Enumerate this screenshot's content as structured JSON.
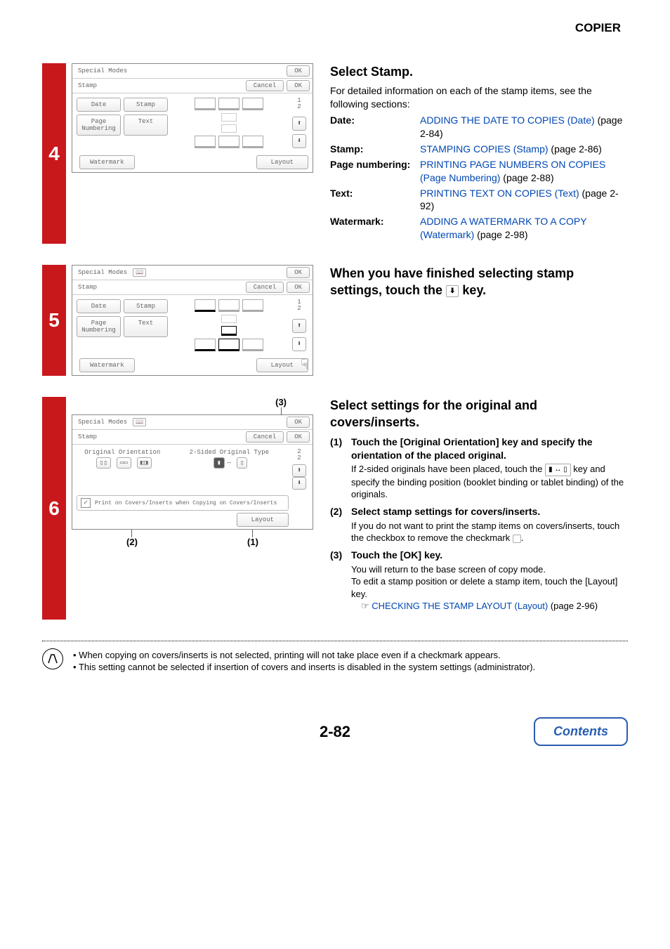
{
  "header": {
    "section": "COPIER"
  },
  "accent_color": "#c8181c",
  "link_color": "#0047b3",
  "steps": {
    "s4": {
      "num": "4",
      "title": "Select Stamp.",
      "intro": "For detailed information on each of the stamp items, see the following sections:",
      "defs": [
        {
          "term": "Date:",
          "link": "ADDING THE DATE TO COPIES (Date)",
          "tail": " (page 2-84)"
        },
        {
          "term": "Stamp:",
          "link": "STAMPING COPIES (Stamp)",
          "tail": " (page 2-86)"
        },
        {
          "term": "Page numbering:",
          "link": "PRINTING PAGE NUMBERS ON COPIES (Page Numbering)",
          "tail": " (page 2-88)"
        },
        {
          "term": "Text:",
          "link": "PRINTING TEXT ON COPIES (Text)",
          "tail": " (page 2-92)"
        },
        {
          "term": "Watermark:",
          "link": "ADDING A WATERMARK TO A COPY (Watermark)",
          "tail": " (page 2-98)"
        }
      ],
      "panel": {
        "top": "Special Modes",
        "row2": "Stamp",
        "ok": "OK",
        "cancel": "Cancel",
        "tabs": [
          "Date",
          "Stamp",
          "Page\nNumbering",
          "Text"
        ],
        "watermark": "Watermark",
        "layout": "Layout",
        "page": "1\n2"
      }
    },
    "s5": {
      "num": "5",
      "title_a": "When you have finished selecting stamp settings, touch the ",
      "title_b": " key.",
      "panel": {
        "top": "Special Modes",
        "row2": "Stamp",
        "ok": "OK",
        "cancel": "Cancel",
        "tabs": [
          "Date",
          "Stamp",
          "Page\nNumbering",
          "Text"
        ],
        "watermark": "Watermark",
        "layout": "Layout",
        "page": "1\n2"
      }
    },
    "s6": {
      "num": "6",
      "title": "Select settings for the original and covers/inserts.",
      "callouts": {
        "c1": "(1)",
        "c2": "(2)",
        "c3": "(3)"
      },
      "items": [
        {
          "num": "(1)",
          "hd": "Touch the [Original Orientation] key and specify the orientation of the placed original.",
          "desc_a": "If 2-sided originals have been placed, touch the ",
          "desc_b": " key and specify the binding position (booklet binding or tablet binding) of the originals."
        },
        {
          "num": "(2)",
          "hd": "Select stamp settings for covers/inserts.",
          "desc_a": "If you do not want to print the stamp items on covers/inserts, touch the checkbox to remove the checkmark ",
          "desc_b": "."
        },
        {
          "num": "(3)",
          "hd": "Touch the [OK] key.",
          "desc": "You will return to the base screen of copy mode.\nTo edit a stamp position or delete a stamp item, touch the [Layout] key.",
          "link": "CHECKING THE STAMP LAYOUT (Layout)",
          "link_tail": " (page 2-96)"
        }
      ],
      "panel": {
        "top": "Special Modes",
        "row2": "Stamp",
        "ok": "OK",
        "cancel": "Cancel",
        "orig_orient": "Original Orientation",
        "two_sided": "2-Sided Original Type",
        "print_covers": "Print on Covers/Inserts when Copying on Covers/Inserts",
        "layout": "Layout",
        "page": "2\n2"
      }
    }
  },
  "notes": {
    "line1": "When copying on covers/inserts is not selected, printing will not take place even if a checkmark appears.",
    "line2": "This setting cannot be selected if insertion of covers and inserts is disabled in the system settings (administrator)."
  },
  "footer": {
    "page": "2-82",
    "contents": "Contents"
  }
}
